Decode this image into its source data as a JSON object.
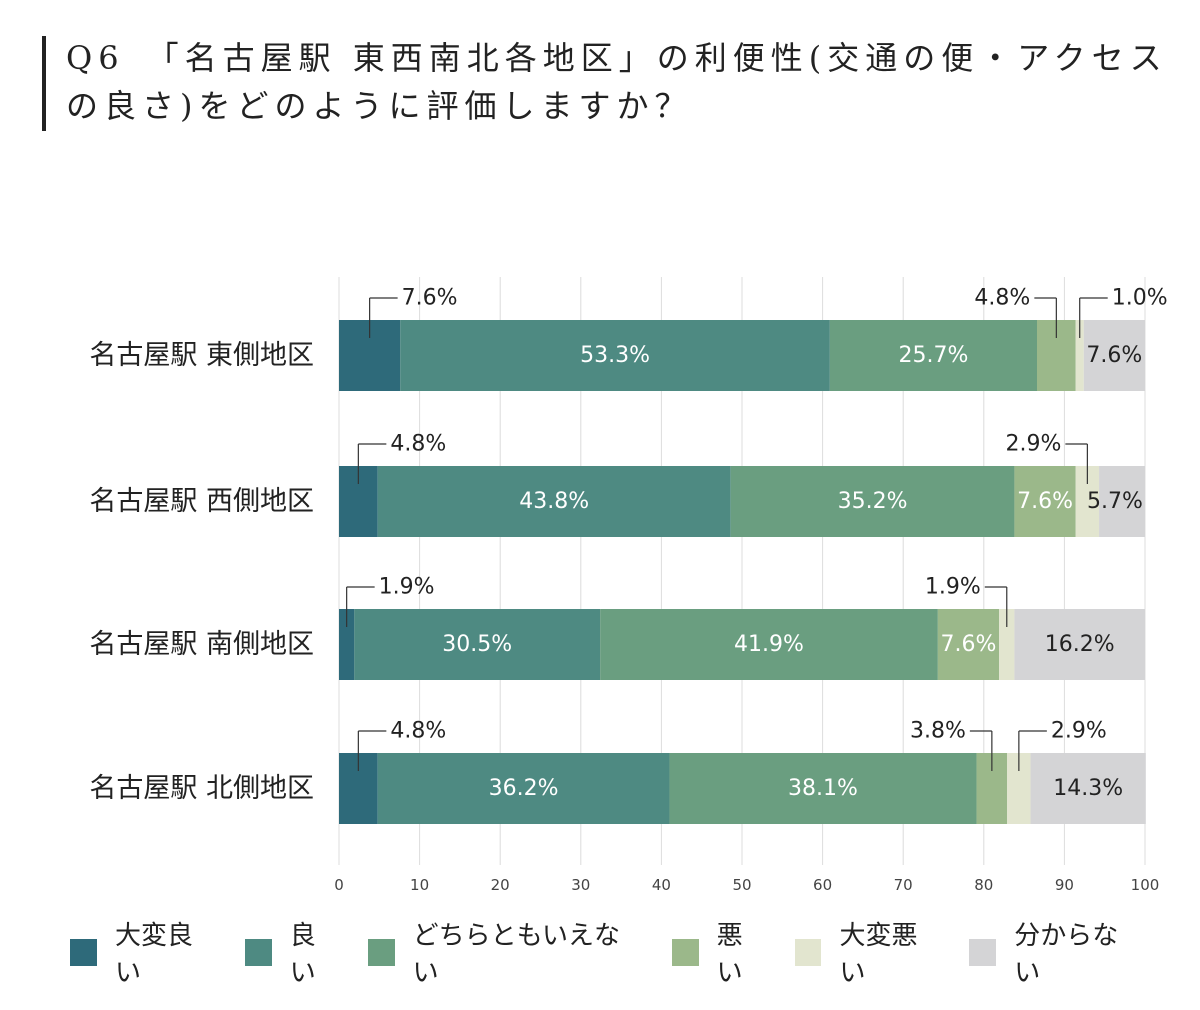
{
  "title": "Q6　「名古屋駅 東西南北各地区」の利便性(交通の便・アクセスの良さ)をどのように評価しますか？",
  "colors": [
    "#2e6a7a",
    "#4e8a82",
    "#6a9e80",
    "#9bb88a",
    "#e2e5cf",
    "#d4d4d6"
  ],
  "chart_data": {
    "type": "bar",
    "orientation": "horizontal",
    "stacked": true,
    "categories": [
      "名古屋駅 東側地区",
      "名古屋駅 西側地区",
      "名古屋駅 南側地区",
      "名古屋駅 北側地区"
    ],
    "series": [
      {
        "name": "大変良い",
        "values": [
          7.6,
          4.8,
          1.9,
          4.8
        ]
      },
      {
        "name": "良い",
        "values": [
          53.3,
          43.8,
          30.5,
          36.2
        ]
      },
      {
        "name": "どちらともいえない",
        "values": [
          25.7,
          35.2,
          41.9,
          38.1
        ]
      },
      {
        "name": "悪い",
        "values": [
          4.8,
          7.6,
          7.6,
          3.8
        ]
      },
      {
        "name": "大変悪い",
        "values": [
          1.0,
          2.9,
          1.9,
          2.9
        ]
      },
      {
        "name": "分からない",
        "values": [
          7.6,
          5.7,
          16.2,
          14.3
        ]
      }
    ],
    "labels": [
      [
        "7.6%",
        "53.3%",
        "25.7%",
        "4.8%",
        "1.0%",
        "7.6%"
      ],
      [
        "4.8%",
        "43.8%",
        "35.2%",
        "7.6%",
        "2.9%",
        "5.7%"
      ],
      [
        "1.9%",
        "30.5%",
        "41.9%",
        "7.6%",
        "1.9%",
        "16.2%"
      ],
      [
        "4.8%",
        "36.2%",
        "38.1%",
        "3.8%",
        "2.9%",
        "14.3%"
      ]
    ],
    "xlim": [
      0,
      100
    ],
    "xticks": [
      0,
      10,
      20,
      30,
      40,
      50,
      60,
      70,
      80,
      90,
      100
    ],
    "grid": true,
    "legend_position": "bottom"
  }
}
